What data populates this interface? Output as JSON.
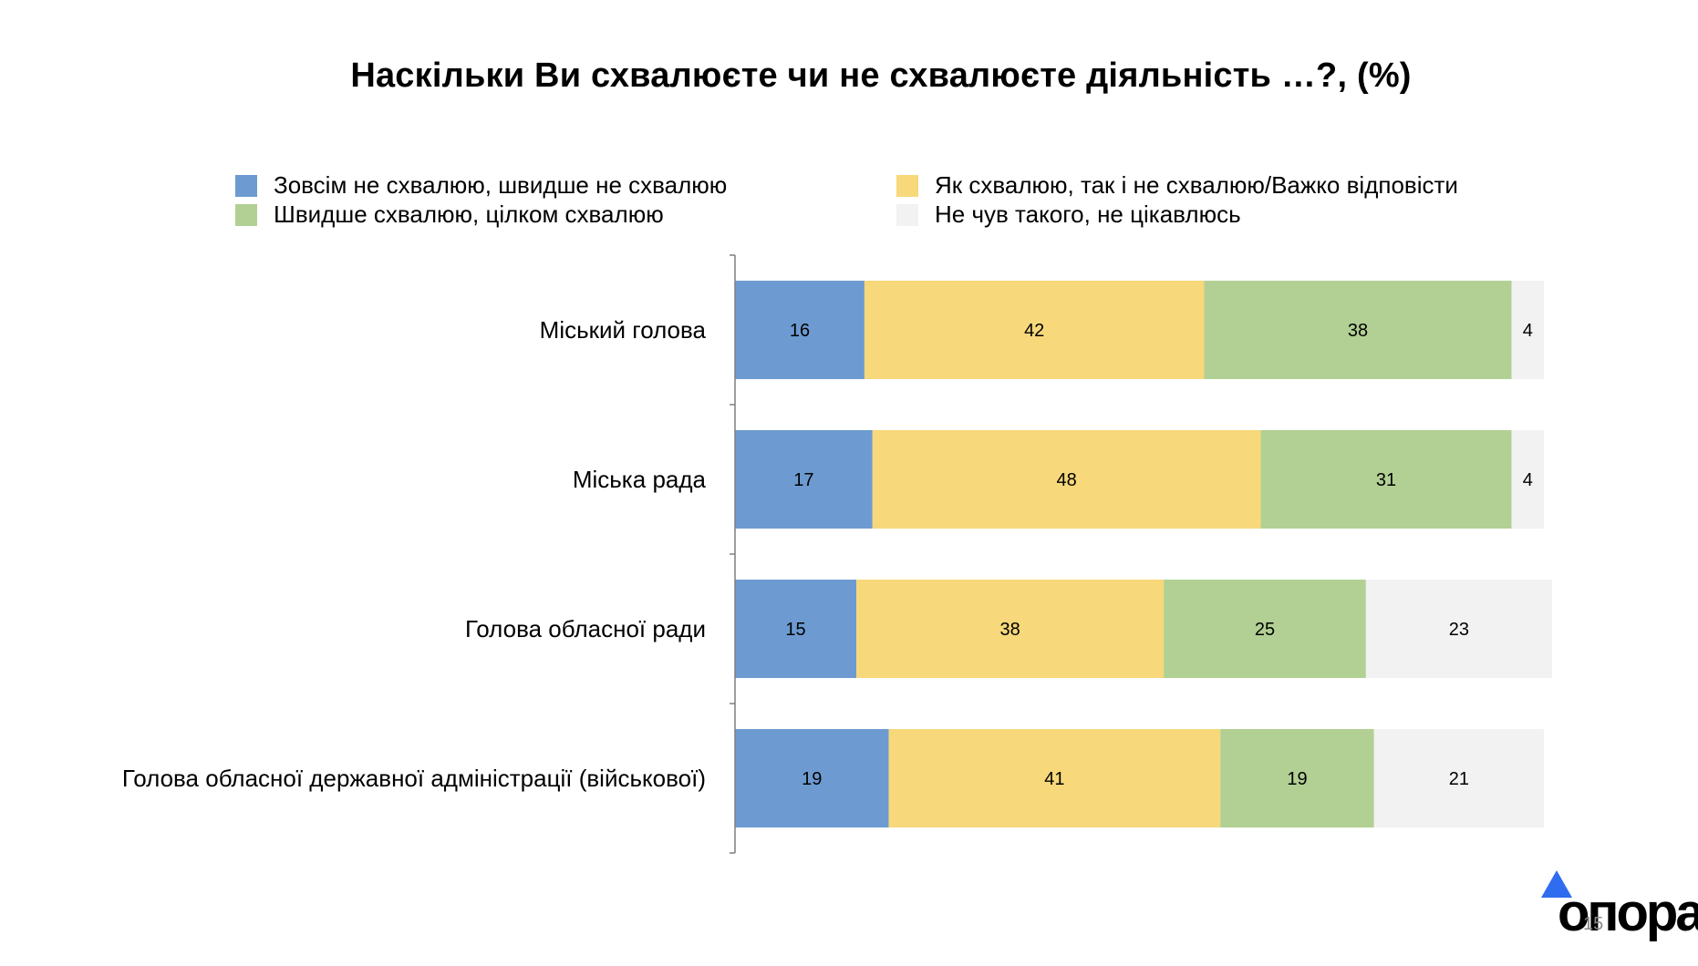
{
  "chart_data": {
    "type": "bar",
    "orientation": "horizontal",
    "stacked": true,
    "title": "Наскільки Ви схвалюєте чи не схвалюєте діяльність …?, (%)",
    "categories": [
      "Міський голова",
      "Міська рада",
      "Голова обласної ради",
      "Голова обласної  державної адміністрації (військової)"
    ],
    "series": [
      {
        "name": "Зовсім не схвалюю, швидше не схвалюю",
        "color": "#6d9bd1",
        "values": [
          16,
          17,
          15,
          19
        ]
      },
      {
        "name": "Як схвалюю, так і не схвалюю/Важко відповісти",
        "color": "#f7d87a",
        "values": [
          42,
          48,
          38,
          41
        ]
      },
      {
        "name": "Швидше схвалюю, цілком схвалюю",
        "color": "#b2d094",
        "values": [
          38,
          31,
          25,
          19
        ]
      },
      {
        "name": "Не чув такого, не цікавлюсь",
        "color": "#f2f2f2",
        "values": [
          4,
          4,
          23,
          21
        ]
      }
    ],
    "xlim": [
      0,
      100
    ],
    "grid": false,
    "legend": "top"
  },
  "logo": {
    "text": "опора",
    "color": "#2f6cf0"
  },
  "page_number": "15"
}
